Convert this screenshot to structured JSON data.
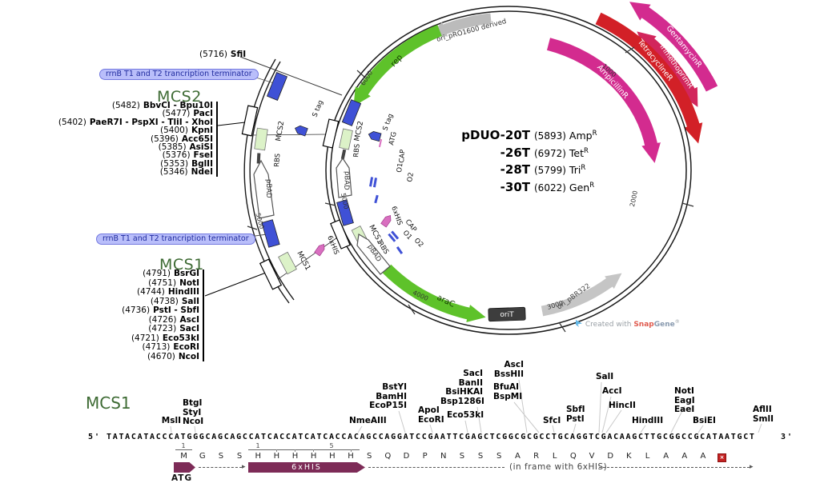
{
  "plasmid": {
    "title_rows": [
      {
        "name": "pDUO-20T",
        "pos": "(5893)",
        "res": "Amp",
        "sup": "R"
      },
      {
        "name": "-26T",
        "pos": "(6972)",
        "res": "Tet",
        "sup": "R"
      },
      {
        "name": "-28T",
        "pos": "(5799)",
        "res": "Tri",
        "sup": "R"
      },
      {
        "name": "-30T",
        "pos": "(6022)",
        "res": "Gen",
        "sup": "R"
      }
    ],
    "terminator_label": "rrnB T1 and T2 trancription terminator",
    "sfi": {
      "pos": "(5716)",
      "name": "SfiI"
    },
    "mcs2": {
      "heading": "MCS2",
      "rows": [
        {
          "pos": "(5482)",
          "name": "BbvCI - Bpu10I"
        },
        {
          "pos": "(5477)",
          "name": "PacI"
        },
        {
          "pos": "(5402)",
          "name": "PaeR7I - PspXI - TliI - XhoI"
        },
        {
          "pos": "(5400)",
          "name": "KpnI"
        },
        {
          "pos": "(5396)",
          "name": "Acc65I"
        },
        {
          "pos": "(5385)",
          "name": "AsiSI"
        },
        {
          "pos": "(5376)",
          "name": "FseI"
        },
        {
          "pos": "(5353)",
          "name": "BglII"
        },
        {
          "pos": "(5346)",
          "name": "NdeI"
        }
      ]
    },
    "mcs1": {
      "heading": "MCS1",
      "rows": [
        {
          "pos": "(4791)",
          "name": "BsrGI"
        },
        {
          "pos": "(4751)",
          "name": "NotI"
        },
        {
          "pos": "(4744)",
          "name": "HindIII"
        },
        {
          "pos": "(4738)",
          "name": "SalI"
        },
        {
          "pos": "(4736)",
          "name": "PstI - SbfI"
        },
        {
          "pos": "(4726)",
          "name": "AscI"
        },
        {
          "pos": "(4723)",
          "name": "SacI"
        },
        {
          "pos": "(4721)",
          "name": "Eco53kI"
        },
        {
          "pos": "(4713)",
          "name": "EcoRI"
        },
        {
          "pos": "(4670)",
          "name": "NcoI"
        }
      ]
    },
    "ring": {
      "rep": "rep",
      "ori_top": "ori_pRO1600 derived",
      "arac": "araC",
      "orit": "oriT",
      "ori_bottom": "ori_pBR322",
      "amp": "AmpicillinR",
      "tet": "TetracyclineR",
      "tri": "TrimethoprimR",
      "gen": "GentamycinR"
    },
    "ticks": {
      "t1": "1000",
      "t2": "2000",
      "t3": "3000",
      "t4": "4000",
      "t5": "5000",
      "t6": "6000",
      "t5o": "5000"
    },
    "features": {
      "mcs2": "MCS2",
      "mcs1": "MCS1",
      "rbs": "RBS",
      "stag": "S tag",
      "atg": "ATG",
      "cap": "CAP",
      "o1": "O1",
      "o2": "O2",
      "pbad": "pBAD",
      "his": "6xHIS"
    },
    "colors": {
      "magenta": "#d32b8f",
      "red": "#d22027",
      "crimson": "#d2265c",
      "green": "#5ec22a",
      "blue": "#3f51d6",
      "maroon": "#7d2b57"
    }
  },
  "credit": {
    "prefix": "Created with",
    "brand_a": "Snap",
    "brand_b": "Gene",
    "reg": "®"
  },
  "seq": {
    "heading": "MCS1",
    "five": "5'",
    "three": "3'",
    "dna": "TATACATACCCATGGGCAGCAGCCATCACCATCATCACCACAGCCAGGATCCGAATTCGAGCTCGGCGCGCCTGCAGGTCGACAAGCTTGCGGCCGCATAATGCT",
    "aa": [
      "M",
      "G",
      "S",
      "S",
      "H",
      "H",
      "H",
      "H",
      "H",
      "H",
      "S",
      "Q",
      "D",
      "P",
      "N",
      "S",
      "S",
      "S",
      "A",
      "R",
      "L",
      "Q",
      "V",
      "D",
      "K",
      "L",
      "A",
      "A",
      "A"
    ],
    "stop_glyph": "×",
    "groups": [
      {
        "labels": [
          "MslI"
        ]
      },
      {
        "labels": [
          "BtgI",
          "StyI",
          "NcoI"
        ]
      },
      {
        "labels": [
          "NmeAIII"
        ]
      },
      {
        "labels": [
          "BstYI",
          "BamHI",
          "EcoP15I"
        ]
      },
      {
        "labels": [
          "ApoI",
          "EcoRI"
        ]
      },
      {
        "labels": [
          "SacI",
          "BanII",
          "BsiHKAI",
          "Bsp1286I"
        ]
      },
      {
        "labels": [
          "Eco53kI"
        ]
      },
      {
        "labels": [
          "AscI",
          "BssHII"
        ]
      },
      {
        "labels": [
          "BfuAI",
          "BspMI"
        ]
      },
      {
        "labels": [
          "SfcI"
        ]
      },
      {
        "labels": [
          "SbfI",
          "PstI"
        ]
      },
      {
        "labels": [
          "SalI"
        ]
      },
      {
        "labels": [
          "AccI"
        ]
      },
      {
        "labels": [
          "HincII"
        ]
      },
      {
        "labels": [
          "HindIII"
        ]
      },
      {
        "labels": [
          "NotI",
          "EagI",
          "EaeI"
        ]
      },
      {
        "labels": [
          "BsiEI"
        ]
      },
      {
        "labels": [
          "AflII",
          "SmlI"
        ]
      }
    ],
    "atg": "ATG",
    "his": "6xHIS",
    "note": "(in frame with 6xHIS)",
    "ruler": {
      "atg1": "1",
      "his1": "1",
      "his5": "5"
    }
  }
}
